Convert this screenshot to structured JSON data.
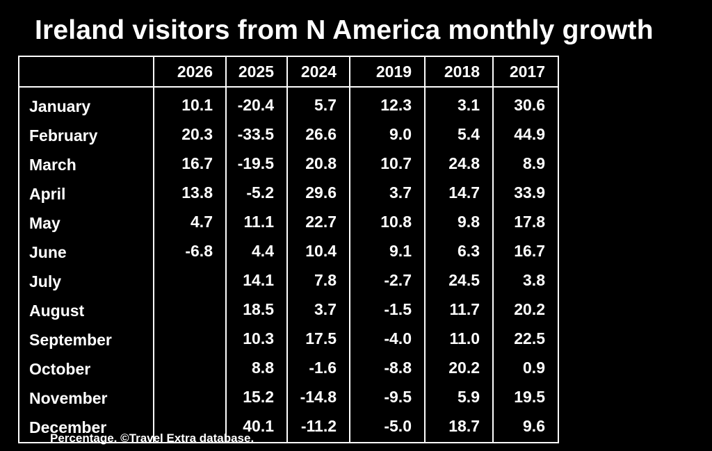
{
  "chart_data": {
    "type": "table",
    "title": "Ireland visitors from N America monthly growth",
    "columns": [
      "2026",
      "2025",
      "2024",
      "2019",
      "2018",
      "2017"
    ],
    "rows": [
      {
        "label": "January",
        "values": [
          "10.1",
          "-20.4",
          "5.7",
          "12.3",
          "3.1",
          "30.6"
        ]
      },
      {
        "label": "February",
        "values": [
          "20.3",
          "-33.5",
          "26.6",
          "9.0",
          "5.4",
          "44.9"
        ]
      },
      {
        "label": "March",
        "values": [
          "16.7",
          "-19.5",
          "20.8",
          "10.7",
          "24.8",
          "8.9"
        ]
      },
      {
        "label": "April",
        "values": [
          "13.8",
          "-5.2",
          "29.6",
          "3.7",
          "14.7",
          "33.9"
        ]
      },
      {
        "label": "May",
        "values": [
          "4.7",
          "11.1",
          "22.7",
          "10.8",
          "9.8",
          "17.8"
        ]
      },
      {
        "label": "June",
        "values": [
          "-6.8",
          "4.4",
          "10.4",
          "9.1",
          "6.3",
          "16.7"
        ]
      },
      {
        "label": "July",
        "values": [
          "",
          "14.1",
          "7.8",
          "-2.7",
          "24.5",
          "3.8"
        ]
      },
      {
        "label": "August",
        "values": [
          "",
          "18.5",
          "3.7",
          "-1.5",
          "11.7",
          "20.2"
        ]
      },
      {
        "label": "September",
        "values": [
          "",
          "10.3",
          "17.5",
          "-4.0",
          "11.0",
          "22.5"
        ]
      },
      {
        "label": "October",
        "values": [
          "",
          "8.8",
          "-1.6",
          "-8.8",
          "20.2",
          "0.9"
        ]
      },
      {
        "label": "November",
        "values": [
          "",
          "15.2",
          "-14.8",
          "-9.5",
          "5.9",
          "19.5"
        ]
      },
      {
        "label": "December",
        "values": [
          "",
          "40.1",
          "-11.2",
          "-5.0",
          "18.7",
          "9.6"
        ]
      }
    ],
    "footnote": "Percentage. ©Travel Extra database."
  },
  "colors": {
    "background": "#000000",
    "text": "#ffffff",
    "grid": "#ffffff"
  }
}
